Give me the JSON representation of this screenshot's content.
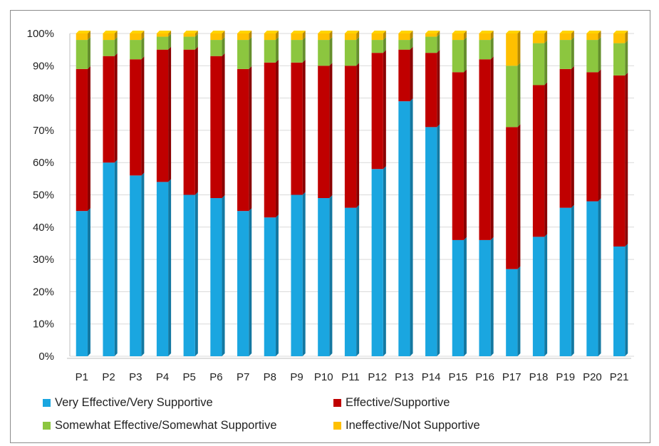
{
  "chart_data": {
    "type": "bar",
    "stacked": true,
    "percent": true,
    "categories": [
      "P1",
      "P2",
      "P3",
      "P4",
      "P5",
      "P6",
      "P7",
      "P8",
      "P9",
      "P10",
      "P11",
      "P12",
      "P13",
      "P14",
      "P15",
      "P16",
      "P17",
      "P18",
      "P19",
      "P20",
      "P21"
    ],
    "ylim": [
      0,
      100
    ],
    "yticks": [
      "0%",
      "10%",
      "20%",
      "30%",
      "40%",
      "50%",
      "60%",
      "70%",
      "80%",
      "90%",
      "100%"
    ],
    "grid": true,
    "legend_position": "bottom",
    "series": [
      {
        "name": "Very Effective/Very Supportive",
        "color": "#1aa6e0",
        "values": [
          45,
          60,
          56,
          54,
          50,
          49,
          45,
          43,
          50,
          49,
          46,
          58,
          79,
          71,
          36,
          36,
          27,
          37,
          46,
          48,
          34
        ]
      },
      {
        "name": "Effective/Supportive",
        "color": "#c00000",
        "values": [
          44,
          33,
          36,
          41,
          45,
          44,
          44,
          48,
          41,
          41,
          44,
          36,
          16,
          23,
          52,
          56,
          44,
          47,
          43,
          40,
          53
        ]
      },
      {
        "name": "Somewhat Effective/Somewhat Supportive",
        "color": "#8cc63f",
        "values": [
          9,
          5,
          6,
          4,
          4,
          5,
          9,
          7,
          7,
          8,
          8,
          4,
          3,
          5,
          10,
          6,
          19,
          13,
          9,
          10,
          10
        ]
      },
      {
        "name": "Ineffective/Not Supportive",
        "color": "#ffc000",
        "values": [
          2,
          2,
          2,
          1,
          1,
          2,
          2,
          2,
          2,
          2,
          2,
          2,
          2,
          1,
          2,
          2,
          10,
          3,
          2,
          2,
          3
        ]
      }
    ]
  },
  "legend": [
    {
      "label": "Very Effective/Very Supportive",
      "color": "#1aa6e0"
    },
    {
      "label": "Effective/Supportive",
      "color": "#c00000"
    },
    {
      "label": "Somewhat Effective/Somewhat Supportive",
      "color": "#8cc63f"
    },
    {
      "label": "Ineffective/Not Supportive",
      "color": "#ffc000"
    }
  ]
}
